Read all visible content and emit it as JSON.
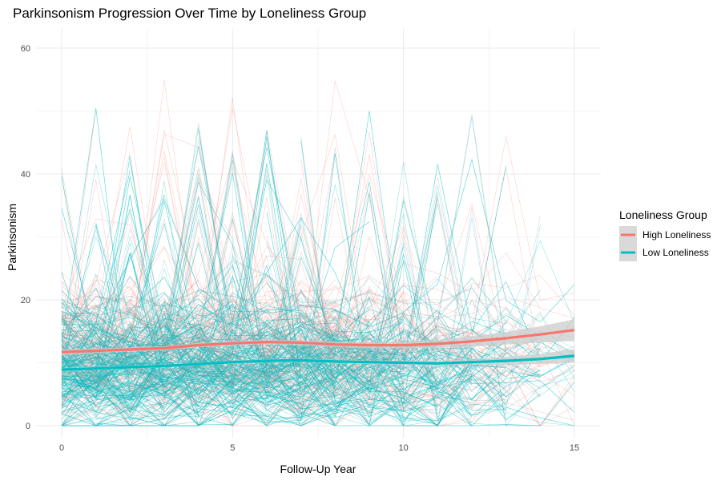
{
  "chart_data": {
    "type": "line",
    "title": "Parkinsonism Progression Over Time by Loneliness Group",
    "xlabel": "Follow-Up Year",
    "ylabel": "Parkinsonism",
    "xlim": [
      -1.5,
      16
    ],
    "ylim": [
      -1.5,
      63
    ],
    "x_ticks": [
      "0",
      "5",
      "10",
      "15"
    ],
    "x_tick_values": [
      0,
      5,
      10,
      15
    ],
    "y_ticks": [
      "0",
      "20",
      "40",
      "60"
    ],
    "y_tick_values": [
      0,
      20,
      40,
      60
    ],
    "grid": true,
    "legend": {
      "title": "Loneliness Group",
      "position": "right",
      "entries": [
        "High Loneliness",
        "Low Loneliness"
      ]
    },
    "colors": {
      "High Loneliness": "#F8766D",
      "Low Loneliness": "#00BFC4",
      "ribbon": "#cccccc",
      "grid": "#ebebeb"
    },
    "series": [
      {
        "name": "High Loneliness",
        "type": "smooth",
        "x": [
          0,
          1,
          2,
          3,
          4,
          5,
          6,
          7,
          8,
          9,
          10,
          11,
          12,
          13,
          14,
          15
        ],
        "values": [
          11.7,
          11.9,
          12.1,
          12.3,
          12.8,
          13.1,
          13.3,
          13.2,
          12.9,
          12.8,
          12.8,
          13.0,
          13.4,
          13.9,
          14.5,
          15.2
        ],
        "ci_halfwidth": [
          0.5,
          0.4,
          0.35,
          0.35,
          0.35,
          0.35,
          0.35,
          0.4,
          0.45,
          0.5,
          0.55,
          0.65,
          0.8,
          1.0,
          1.3,
          1.7
        ]
      },
      {
        "name": "Low Loneliness",
        "type": "smooth",
        "x": [
          0,
          1,
          2,
          3,
          4,
          5,
          6,
          7,
          8,
          9,
          10,
          11,
          12,
          13,
          14,
          15
        ],
        "values": [
          8.9,
          9.1,
          9.3,
          9.5,
          9.8,
          10.1,
          10.3,
          10.4,
          10.2,
          10.1,
          10.0,
          9.9,
          10.1,
          10.3,
          10.6,
          11.1
        ],
        "ci_halfwidth": [
          0.3,
          0.25,
          0.25,
          0.25,
          0.25,
          0.25,
          0.25,
          0.25,
          0.3,
          0.3,
          0.35,
          0.4,
          0.5,
          0.6,
          0.8,
          1.1
        ]
      }
    ],
    "individual_trajectories": {
      "description_counts": {
        "High Loneliness": 160,
        "Low Loneliness": 420
      },
      "value_range": [
        0,
        61
      ],
      "typical_center": 10
    }
  }
}
